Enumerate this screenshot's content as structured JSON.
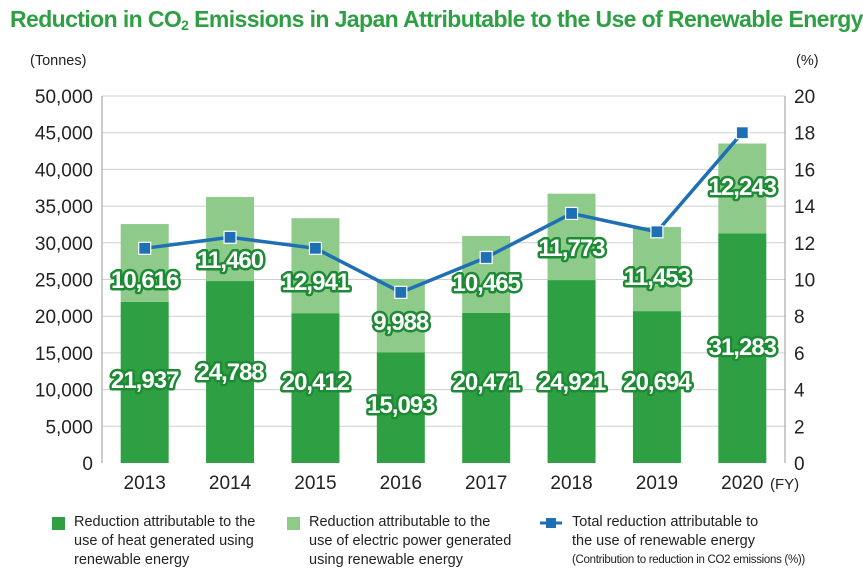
{
  "title_main": "Reduction in CO",
  "title_sub": "2",
  "title_rest": " Emissions in Japan Attributable to the Use of Renewable Energy",
  "chart_data": {
    "type": "bar",
    "stacked": true,
    "categories": [
      "2013",
      "2014",
      "2015",
      "2016",
      "2017",
      "2018",
      "2019",
      "2020"
    ],
    "x_suffix": "(FY)",
    "y_left_unit": "(Tonnes)",
    "y_right_unit": "(%)",
    "ylim_left": [
      0,
      50000
    ],
    "ylim_right": [
      0,
      20
    ],
    "y_left_ticks": [
      "0",
      "5,000",
      "10,000",
      "15,000",
      "20,000",
      "25,000",
      "30,000",
      "35,000",
      "40,000",
      "45,000",
      "50,000"
    ],
    "y_right_ticks": [
      "0",
      "2",
      "4",
      "6",
      "8",
      "10",
      "12",
      "14",
      "16",
      "18",
      "20"
    ],
    "series": [
      {
        "name": "Reduction attributable to the use of heat generated using renewable energy",
        "color": "#2ea043",
        "values": [
          21937,
          24788,
          20412,
          15093,
          20471,
          24921,
          20694,
          31283
        ],
        "labels": [
          "21,937",
          "24,788",
          "20,412",
          "15,093",
          "20,471",
          "24,921",
          "20,694",
          "31,283"
        ]
      },
      {
        "name": "Reduction attributable to the use of electric power generated using renewable energy",
        "color": "#8ecb8a",
        "values": [
          10616,
          11460,
          12941,
          9988,
          10465,
          11773,
          11453,
          12243
        ],
        "labels": [
          "10,616",
          "11,460",
          "12,941",
          "9,988",
          "10,465",
          "11,773",
          "11,453",
          "12,243"
        ]
      }
    ],
    "line_series": {
      "name": "Total reduction attributable to the use of renewable energy",
      "color": "#1f6fb5",
      "values": [
        11.7,
        12.3,
        11.7,
        9.3,
        11.2,
        13.6,
        12.6,
        18.0
      ]
    }
  },
  "legend": [
    {
      "lines": [
        "Reduction attributable to the",
        "use of heat generated using",
        "renewable energy"
      ],
      "color": "#2ea043"
    },
    {
      "lines": [
        "Reduction attributable to the",
        "use of electric power generated",
        "using renewable energy"
      ],
      "color": "#8ecb8a"
    },
    {
      "lines": [
        "Total reduction attributable to",
        "the use of renewable energy",
        "(Contribution to reduction in CO2 emissions (%))"
      ],
      "color": "#1f6fb5"
    }
  ]
}
